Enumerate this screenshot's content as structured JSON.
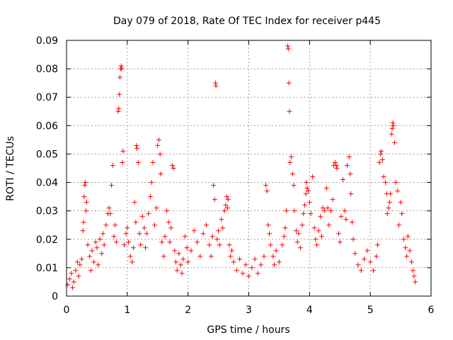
{
  "chart_data": {
    "type": "scatter",
    "title": "Day 079 of 2018, Rate Of TEC Index for receiver p445",
    "xlabel": "GPS time / hours",
    "ylabel": "ROTI / TECUs",
    "xlim": [
      0,
      6
    ],
    "ylim": [
      0,
      0.09
    ],
    "xticks": [
      "0",
      "1",
      "2",
      "3",
      "4",
      "5",
      "6"
    ],
    "yticks": [
      "0",
      "0.01",
      "0.02",
      "0.03",
      "0.04",
      "0.05",
      "0.06",
      "0.07",
      "0.08",
      "0.09"
    ],
    "grid": true,
    "marker": "+",
    "color": "#ff0000",
    "series": [
      {
        "name": "ROTI",
        "points": [
          [
            0.02,
            0.004
          ],
          [
            0.05,
            0.006
          ],
          [
            0.08,
            0.008
          ],
          [
            0.1,
            0.003
          ],
          [
            0.12,
            0.005
          ],
          [
            0.15,
            0.009
          ],
          [
            0.18,
            0.012
          ],
          [
            0.2,
            0.007
          ],
          [
            0.22,
            0.011
          ],
          [
            0.25,
            0.013
          ],
          [
            0.27,
            0.023
          ],
          [
            0.28,
            0.026
          ],
          [
            0.29,
            0.035
          ],
          [
            0.3,
            0.039
          ],
          [
            0.31,
            0.04
          ],
          [
            0.32,
            0.03
          ],
          [
            0.33,
            0.033
          ],
          [
            0.35,
            0.018
          ],
          [
            0.38,
            0.014
          ],
          [
            0.4,
            0.009
          ],
          [
            0.42,
            0.016
          ],
          [
            0.45,
            0.012
          ],
          [
            0.48,
            0.019
          ],
          [
            0.5,
            0.017
          ],
          [
            0.52,
            0.011
          ],
          [
            0.55,
            0.02
          ],
          [
            0.58,
            0.015
          ],
          [
            0.6,
            0.022
          ],
          [
            0.62,
            0.018
          ],
          [
            0.65,
            0.025
          ],
          [
            0.68,
            0.029
          ],
          [
            0.7,
            0.031
          ],
          [
            0.72,
            0.029
          ],
          [
            0.74,
            0.039
          ],
          [
            0.76,
            0.046
          ],
          [
            0.78,
            0.021
          ],
          [
            0.8,
            0.025
          ],
          [
            0.82,
            0.019
          ],
          [
            0.85,
            0.065
          ],
          [
            0.86,
            0.066
          ],
          [
            0.87,
            0.071
          ],
          [
            0.88,
            0.077
          ],
          [
            0.89,
            0.08
          ],
          [
            0.9,
            0.081
          ],
          [
            0.91,
            0.08
          ],
          [
            0.92,
            0.047
          ],
          [
            0.93,
            0.051
          ],
          [
            0.95,
            0.018
          ],
          [
            0.98,
            0.022
          ],
          [
            1.0,
            0.024
          ],
          [
            1.02,
            0.019
          ],
          [
            1.05,
            0.014
          ],
          [
            1.08,
            0.012
          ],
          [
            1.1,
            0.017
          ],
          [
            1.12,
            0.033
          ],
          [
            1.14,
            0.026
          ],
          [
            1.15,
            0.053
          ],
          [
            1.16,
            0.052
          ],
          [
            1.18,
            0.047
          ],
          [
            1.2,
            0.022
          ],
          [
            1.22,
            0.018
          ],
          [
            1.25,
            0.028
          ],
          [
            1.28,
            0.024
          ],
          [
            1.3,
            0.017
          ],
          [
            1.32,
            0.022
          ],
          [
            1.35,
            0.029
          ],
          [
            1.38,
            0.035
          ],
          [
            1.4,
            0.04
          ],
          [
            1.42,
            0.047
          ],
          [
            1.45,
            0.025
          ],
          [
            1.48,
            0.031
          ],
          [
            1.5,
            0.053
          ],
          [
            1.52,
            0.055
          ],
          [
            1.54,
            0.05
          ],
          [
            1.55,
            0.043
          ],
          [
            1.57,
            0.019
          ],
          [
            1.6,
            0.014
          ],
          [
            1.62,
            0.021
          ],
          [
            1.65,
            0.03
          ],
          [
            1.68,
            0.026
          ],
          [
            1.7,
            0.019
          ],
          [
            1.72,
            0.024
          ],
          [
            1.74,
            0.046
          ],
          [
            1.76,
            0.045
          ],
          [
            1.78,
            0.016
          ],
          [
            1.8,
            0.012
          ],
          [
            1.82,
            0.009
          ],
          [
            1.85,
            0.015
          ],
          [
            1.88,
            0.011
          ],
          [
            1.9,
            0.008
          ],
          [
            1.92,
            0.013
          ],
          [
            1.95,
            0.021
          ],
          [
            1.98,
            0.017
          ],
          [
            2.0,
            0.012
          ],
          [
            2.05,
            0.016
          ],
          [
            2.1,
            0.023
          ],
          [
            2.15,
            0.019
          ],
          [
            2.2,
            0.014
          ],
          [
            2.25,
            0.022
          ],
          [
            2.3,
            0.025
          ],
          [
            2.35,
            0.018
          ],
          [
            2.38,
            0.014
          ],
          [
            2.4,
            0.021
          ],
          [
            2.42,
            0.039
          ],
          [
            2.44,
            0.034
          ],
          [
            2.45,
            0.075
          ],
          [
            2.46,
            0.074
          ],
          [
            2.48,
            0.02
          ],
          [
            2.5,
            0.023
          ],
          [
            2.52,
            0.018
          ],
          [
            2.55,
            0.027
          ],
          [
            2.57,
            0.024
          ],
          [
            2.6,
            0.03
          ],
          [
            2.62,
            0.032
          ],
          [
            2.64,
            0.035
          ],
          [
            2.65,
            0.031
          ],
          [
            2.66,
            0.034
          ],
          [
            2.68,
            0.018
          ],
          [
            2.7,
            0.014
          ],
          [
            2.72,
            0.016
          ],
          [
            2.75,
            0.012
          ],
          [
            2.8,
            0.009
          ],
          [
            2.85,
            0.013
          ],
          [
            2.9,
            0.008
          ],
          [
            2.95,
            0.011
          ],
          [
            3.0,
            0.007
          ],
          [
            3.05,
            0.01
          ],
          [
            3.1,
            0.013
          ],
          [
            3.15,
            0.008
          ],
          [
            3.2,
            0.011
          ],
          [
            3.25,
            0.014
          ],
          [
            3.28,
            0.039
          ],
          [
            3.3,
            0.037
          ],
          [
            3.32,
            0.025
          ],
          [
            3.34,
            0.022
          ],
          [
            3.36,
            0.018
          ],
          [
            3.4,
            0.014
          ],
          [
            3.42,
            0.011
          ],
          [
            3.45,
            0.016
          ],
          [
            3.5,
            0.012
          ],
          [
            3.55,
            0.018
          ],
          [
            3.58,
            0.021
          ],
          [
            3.6,
            0.024
          ],
          [
            3.62,
            0.03
          ],
          [
            3.64,
            0.088
          ],
          [
            3.65,
            0.087
          ],
          [
            3.66,
            0.075
          ],
          [
            3.67,
            0.065
          ],
          [
            3.68,
            0.047
          ],
          [
            3.7,
            0.049
          ],
          [
            3.72,
            0.043
          ],
          [
            3.74,
            0.039
          ],
          [
            3.75,
            0.03
          ],
          [
            3.78,
            0.023
          ],
          [
            3.8,
            0.019
          ],
          [
            3.82,
            0.022
          ],
          [
            3.85,
            0.017
          ],
          [
            3.88,
            0.025
          ],
          [
            3.9,
            0.029
          ],
          [
            3.92,
            0.032
          ],
          [
            3.94,
            0.036
          ],
          [
            3.95,
            0.04
          ],
          [
            3.96,
            0.038
          ],
          [
            3.98,
            0.037
          ],
          [
            4.0,
            0.033
          ],
          [
            4.02,
            0.029
          ],
          [
            4.05,
            0.042
          ],
          [
            4.08,
            0.024
          ],
          [
            4.1,
            0.02
          ],
          [
            4.12,
            0.018
          ],
          [
            4.15,
            0.023
          ],
          [
            4.18,
            0.028
          ],
          [
            4.2,
            0.021
          ],
          [
            4.22,
            0.031
          ],
          [
            4.25,
            0.03
          ],
          [
            4.28,
            0.038
          ],
          [
            4.3,
            0.031
          ],
          [
            4.32,
            0.025
          ],
          [
            4.35,
            0.03
          ],
          [
            4.38,
            0.034
          ],
          [
            4.4,
            0.046
          ],
          [
            4.42,
            0.047
          ],
          [
            4.44,
            0.046
          ],
          [
            4.45,
            0.045
          ],
          [
            4.48,
            0.022
          ],
          [
            4.5,
            0.019
          ],
          [
            4.52,
            0.028
          ],
          [
            4.55,
            0.041
          ],
          [
            4.58,
            0.03
          ],
          [
            4.6,
            0.027
          ],
          [
            4.62,
            0.046
          ],
          [
            4.65,
            0.049
          ],
          [
            4.67,
            0.043
          ],
          [
            4.68,
            0.036
          ],
          [
            4.7,
            0.026
          ],
          [
            4.72,
            0.02
          ],
          [
            4.75,
            0.015
          ],
          [
            4.8,
            0.011
          ],
          [
            4.85,
            0.009
          ],
          [
            4.9,
            0.013
          ],
          [
            4.95,
            0.016
          ],
          [
            5.0,
            0.012
          ],
          [
            5.05,
            0.009
          ],
          [
            5.1,
            0.014
          ],
          [
            5.12,
            0.018
          ],
          [
            5.15,
            0.047
          ],
          [
            5.17,
            0.05
          ],
          [
            5.18,
            0.051
          ],
          [
            5.2,
            0.048
          ],
          [
            5.22,
            0.042
          ],
          [
            5.25,
            0.04
          ],
          [
            5.27,
            0.036
          ],
          [
            5.28,
            0.029
          ],
          [
            5.3,
            0.031
          ],
          [
            5.32,
            0.033
          ],
          [
            5.33,
            0.036
          ],
          [
            5.35,
            0.057
          ],
          [
            5.36,
            0.059
          ],
          [
            5.37,
            0.061
          ],
          [
            5.38,
            0.06
          ],
          [
            5.4,
            0.054
          ],
          [
            5.42,
            0.04
          ],
          [
            5.45,
            0.037
          ],
          [
            5.47,
            0.025
          ],
          [
            5.5,
            0.033
          ],
          [
            5.52,
            0.029
          ],
          [
            5.55,
            0.02
          ],
          [
            5.58,
            0.017
          ],
          [
            5.6,
            0.014
          ],
          [
            5.62,
            0.021
          ],
          [
            5.65,
            0.016
          ],
          [
            5.68,
            0.012
          ],
          [
            5.7,
            0.009
          ],
          [
            5.72,
            0.007
          ],
          [
            5.74,
            0.005
          ]
        ]
      }
    ]
  }
}
